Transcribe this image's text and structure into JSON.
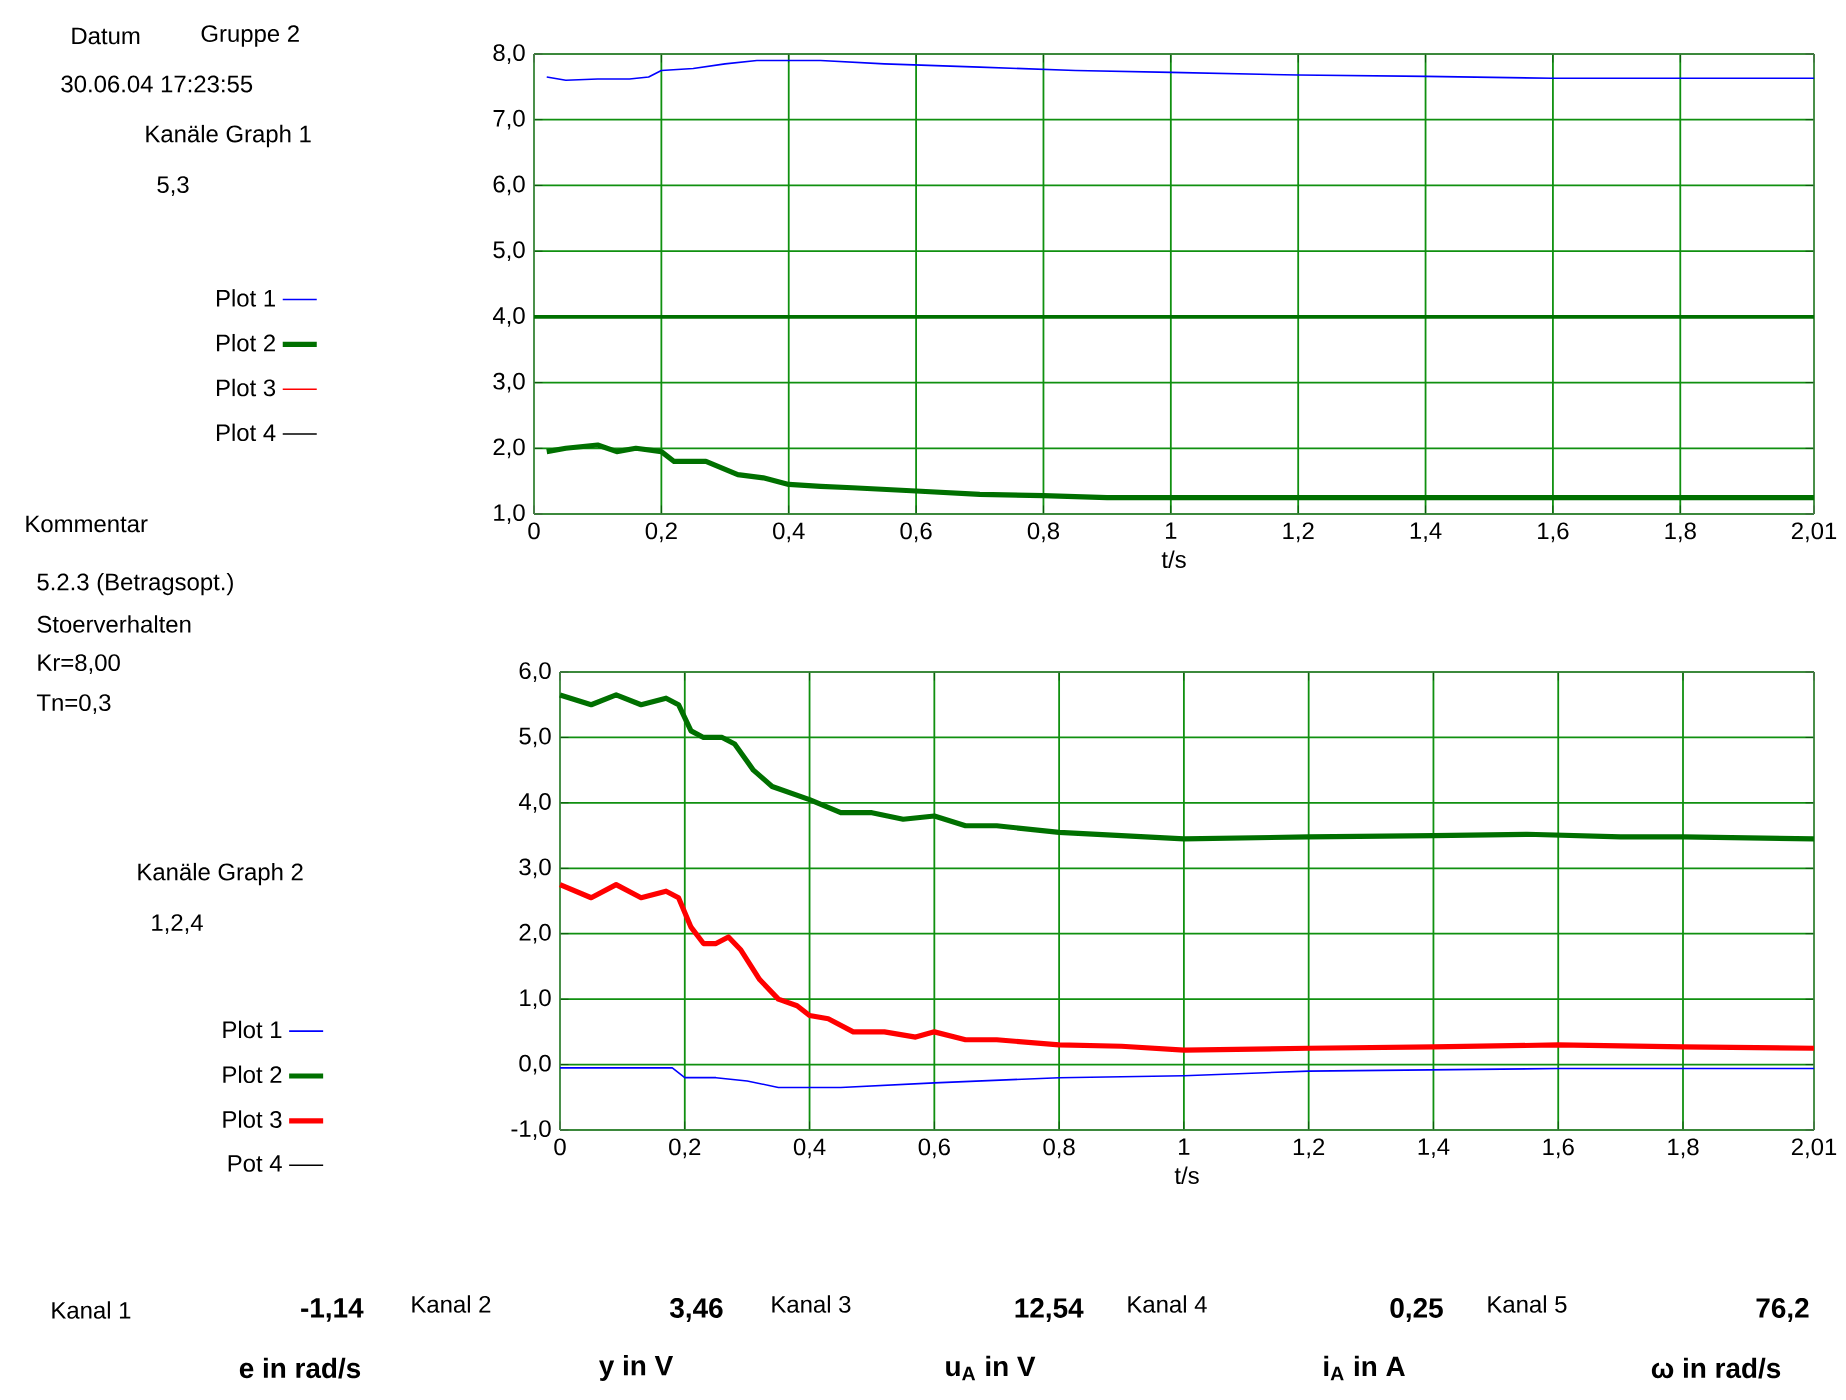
{
  "chart_data": [
    {
      "type": "line",
      "xlabel": "t/s",
      "xlim": [
        0,
        2.01
      ],
      "ylim": [
        1,
        8
      ],
      "xticks": [
        0,
        {
          "value": 0.2,
          "label": "0,2"
        },
        {
          "value": 0.4,
          "label": "0,4"
        },
        {
          "value": 0.6,
          "label": "0,6"
        },
        {
          "value": 0.8,
          "label": "0,8"
        },
        1,
        {
          "value": 1.2,
          "label": "1,2"
        },
        {
          "value": 1.4,
          "label": "1,4"
        },
        {
          "value": 1.6,
          "label": "1,6"
        },
        {
          "value": 1.8,
          "label": "1,8"
        },
        {
          "value": 2.01,
          "label": "2,01"
        }
      ],
      "yticks": [
        {
          "value": 1,
          "label": "1,0"
        },
        {
          "value": 2,
          "label": "2,0"
        },
        {
          "value": 3,
          "label": "3,0"
        },
        {
          "value": 4,
          "label": "4,0"
        },
        {
          "value": 5,
          "label": "5,0"
        },
        {
          "value": 6,
          "label": "6,0"
        },
        {
          "value": 7,
          "label": "7,0"
        },
        {
          "value": 8,
          "label": "8,0"
        }
      ],
      "grid": true,
      "legend": "left",
      "ref_lines": [
        {
          "axis": "y",
          "value": 4,
          "color": "#007000"
        }
      ],
      "series": [
        {
          "name": "Plot 1",
          "color": "#0000ff",
          "x": [
            0.02,
            0.05,
            0.1,
            0.15,
            0.18,
            0.2,
            0.25,
            0.3,
            0.35,
            0.45,
            0.55,
            0.7,
            0.85,
            1.0,
            1.2,
            1.4,
            1.6,
            1.8,
            2.01
          ],
          "values": [
            7.65,
            7.6,
            7.62,
            7.62,
            7.65,
            7.75,
            7.78,
            7.85,
            7.9,
            7.9,
            7.85,
            7.8,
            7.75,
            7.72,
            7.68,
            7.66,
            7.63,
            7.63,
            7.63
          ]
        },
        {
          "name": "Plot 2",
          "color": "#007000",
          "x": [
            0.02,
            0.05,
            0.1,
            0.13,
            0.16,
            0.2,
            0.22,
            0.27,
            0.32,
            0.36,
            0.4,
            0.45,
            0.5,
            0.6,
            0.7,
            0.8,
            0.9,
            1.0,
            1.2,
            1.4,
            1.6,
            1.8,
            2.01
          ],
          "values": [
            1.95,
            2.0,
            2.05,
            1.95,
            2.0,
            1.95,
            1.8,
            1.8,
            1.6,
            1.55,
            1.45,
            1.42,
            1.4,
            1.35,
            1.3,
            1.28,
            1.25,
            1.25,
            1.25,
            1.25,
            1.25,
            1.25,
            1.25
          ]
        },
        {
          "name": "Plot 3",
          "color": "#ff0000"
        },
        {
          "name": "Plot 4",
          "color": "#000000"
        }
      ]
    },
    {
      "type": "line",
      "xlabel": "t/s",
      "xlim": [
        0,
        2.01
      ],
      "ylim": [
        -1,
        6
      ],
      "xticks": [
        0,
        {
          "value": 0.2,
          "label": "0,2"
        },
        {
          "value": 0.4,
          "label": "0,4"
        },
        {
          "value": 0.6,
          "label": "0,6"
        },
        {
          "value": 0.8,
          "label": "0,8"
        },
        1,
        {
          "value": 1.2,
          "label": "1,2"
        },
        {
          "value": 1.4,
          "label": "1,4"
        },
        {
          "value": 1.6,
          "label": "1,6"
        },
        {
          "value": 1.8,
          "label": "1,8"
        },
        {
          "value": 2.01,
          "label": "2,01"
        }
      ],
      "yticks": [
        {
          "value": -1,
          "label": "-1,0"
        },
        {
          "value": 0,
          "label": "0,0"
        },
        {
          "value": 1,
          "label": "1,0"
        },
        {
          "value": 2,
          "label": "2,0"
        },
        {
          "value": 3,
          "label": "3,0"
        },
        {
          "value": 4,
          "label": "4,0"
        },
        {
          "value": 5,
          "label": "5,0"
        },
        {
          "value": 6,
          "label": "6,0"
        }
      ],
      "grid": true,
      "legend": "left",
      "series": [
        {
          "name": "Plot 1",
          "color": "#0000ff",
          "x": [
            0,
            0.18,
            0.2,
            0.25,
            0.3,
            0.35,
            0.45,
            0.6,
            0.8,
            1.0,
            1.2,
            1.6,
            2.01
          ],
          "values": [
            -0.05,
            -0.05,
            -0.2,
            -0.2,
            -0.25,
            -0.35,
            -0.35,
            -0.28,
            -0.2,
            -0.17,
            -0.1,
            -0.06,
            -0.06
          ]
        },
        {
          "name": "Plot 2",
          "color": "#007000",
          "x": [
            0,
            0.05,
            0.09,
            0.13,
            0.17,
            0.19,
            0.21,
            0.23,
            0.26,
            0.28,
            0.31,
            0.34,
            0.4,
            0.45,
            0.5,
            0.55,
            0.6,
            0.65,
            0.7,
            0.8,
            0.9,
            1.0,
            1.2,
            1.4,
            1.55,
            1.7,
            1.8,
            2.01
          ],
          "values": [
            5.65,
            5.5,
            5.65,
            5.5,
            5.6,
            5.5,
            5.1,
            5.0,
            5.0,
            4.9,
            4.5,
            4.25,
            4.05,
            3.85,
            3.85,
            3.75,
            3.8,
            3.65,
            3.65,
            3.55,
            3.5,
            3.45,
            3.48,
            3.5,
            3.52,
            3.48,
            3.48,
            3.45
          ]
        },
        {
          "name": "Plot 3",
          "color": "#ff0000",
          "x": [
            0,
            0.05,
            0.09,
            0.13,
            0.17,
            0.19,
            0.21,
            0.23,
            0.25,
            0.27,
            0.29,
            0.32,
            0.35,
            0.38,
            0.4,
            0.43,
            0.47,
            0.52,
            0.57,
            0.6,
            0.65,
            0.7,
            0.8,
            0.9,
            1.0,
            1.2,
            1.4,
            1.6,
            1.8,
            2.01
          ],
          "values": [
            2.75,
            2.55,
            2.75,
            2.55,
            2.65,
            2.55,
            2.1,
            1.85,
            1.85,
            1.95,
            1.75,
            1.3,
            1.0,
            0.9,
            0.75,
            0.7,
            0.5,
            0.5,
            0.42,
            0.5,
            0.38,
            0.38,
            0.3,
            0.28,
            0.22,
            0.25,
            0.27,
            0.3,
            0.27,
            0.25
          ]
        },
        {
          "name": "Pot 4",
          "color": "#000000"
        }
      ]
    },
    {
      "type": "other",
      "annotations": [
        "Datum",
        "Gruppe 2",
        "30.06.04 17:23:55",
        "Kanäle Graph 1",
        "5,3",
        "Kommentar",
        "5.2.3 (Betragsopt.)",
        "Stoerverhalten",
        "Kr=8,00",
        "Tn=0,3",
        "Kanäle Graph 2",
        "1,2,4",
        "Kanal 1",
        "-1,14",
        "e in rad/s",
        "Kanal 2",
        "3,46",
        "y in V",
        "Kanal 3",
        "12,54",
        "u$_{A}$ in V",
        "Kanal 4",
        "0,25",
        "i$_{A}$ in A",
        "Kanal 5",
        "76,2",
        "ω in rad/s"
      ]
    }
  ]
}
